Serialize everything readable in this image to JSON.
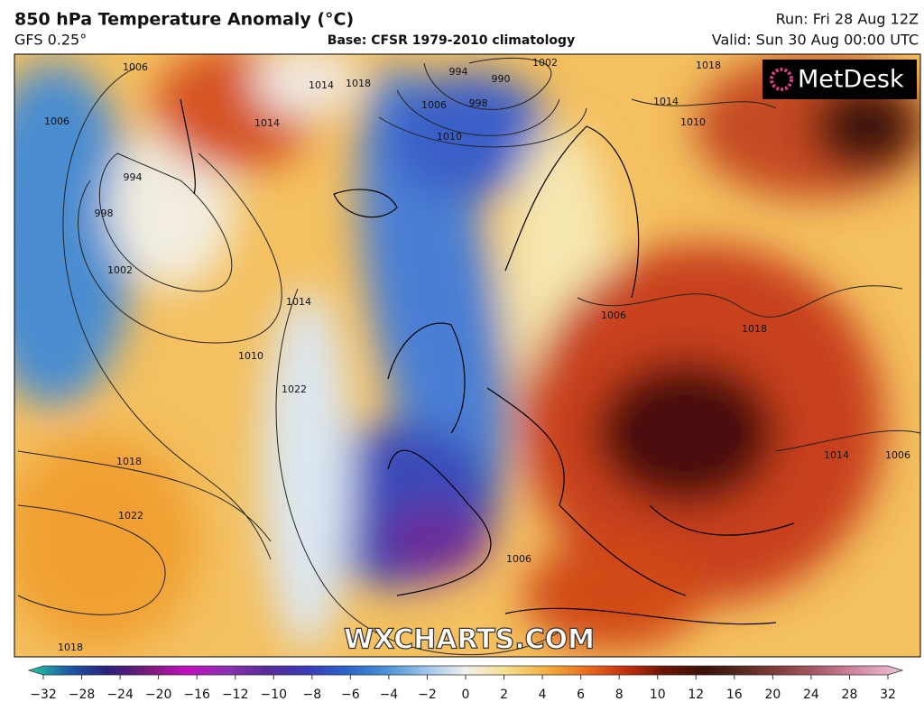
{
  "header": {
    "title": "850 hPa Temperature Anomaly (°C)",
    "model": "GFS 0.25°",
    "base": "Base: CFSR 1979-2010 climatology",
    "run": "Run: Fri 28 Aug 12Z",
    "valid": "Valid: Sun 30 Aug 00:00 UTC"
  },
  "logo": "MetDesk",
  "watermark": "WXCHARTS.COM",
  "isobar_labels": [
    "1006",
    "1014",
    "994",
    "998",
    "1002",
    "1010",
    "1014",
    "1022",
    "1018",
    "1022",
    "1018",
    "1006",
    "1014",
    "1018",
    "994",
    "990",
    "998",
    "1006",
    "1010",
    "1014",
    "1018",
    "1010",
    "1006",
    "1018",
    "1014",
    "1006",
    "1006",
    "1002"
  ],
  "colorbar": {
    "ticks": [
      {
        "value": -32,
        "label": "−32"
      },
      {
        "value": -28,
        "label": "−28"
      },
      {
        "value": -24,
        "label": "−24"
      },
      {
        "value": -20,
        "label": "−20"
      },
      {
        "value": -16,
        "label": "−16"
      },
      {
        "value": -12,
        "label": "−12"
      },
      {
        "value": -10,
        "label": "−10"
      },
      {
        "value": -8,
        "label": "−8"
      },
      {
        "value": -6,
        "label": "−6"
      },
      {
        "value": -4,
        "label": "−4"
      },
      {
        "value": -2,
        "label": "−2"
      },
      0,
      2,
      4,
      6,
      8,
      10,
      12,
      16,
      20,
      24,
      28,
      32
    ],
    "colors": [
      "#27c9a0",
      "#1e5aa8",
      "#2a1f7a",
      "#7a1a7a",
      "#c010c0",
      "#8a30b0",
      "#5a2a9a",
      "#3a3ab8",
      "#2a64c8",
      "#4a92d8",
      "#9cc4ea",
      "#f2f0ea",
      "#f6df90",
      "#f4b040",
      "#ea7020",
      "#c83010",
      "#6a1406",
      "#3a1008",
      "#5a2a20",
      "#8a4040",
      "#b06070",
      "#d890a8",
      "#f0c0d8"
    ]
  }
}
